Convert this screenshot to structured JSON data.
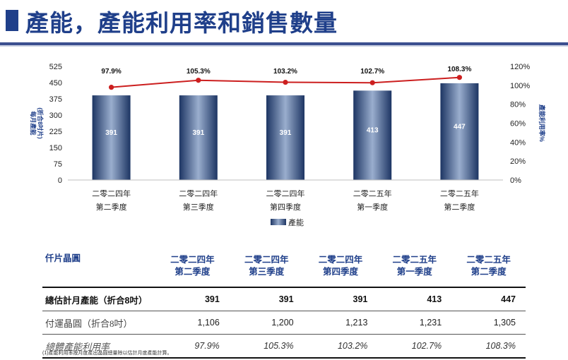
{
  "header": {
    "title": "產能，產能利用率和銷售數量"
  },
  "chart_data": {
    "type": "bar",
    "categories": [
      [
        "二零二四年",
        "第二季度"
      ],
      [
        "二零二四年",
        "第三季度"
      ],
      [
        "二零二四年",
        "第四季度"
      ],
      [
        "二零二五年",
        "第一季度"
      ],
      [
        "二零二五年",
        "第二季度"
      ]
    ],
    "series": [
      {
        "name": "產能",
        "type": "bar",
        "axis": "left",
        "values": [
          391,
          391,
          391,
          413,
          447
        ]
      },
      {
        "type": "line",
        "axis": "right",
        "values": [
          97.9,
          105.3,
          103.2,
          102.7,
          108.3
        ]
      }
    ],
    "bar_labels": [
      "391",
      "391",
      "391",
      "413",
      "447"
    ],
    "line_labels": [
      "97.9%",
      "105.3%",
      "103.2%",
      "102.7%",
      "108.3%"
    ],
    "ylabel_left": [
      "每月產能",
      "(折合8吋片)"
    ],
    "ylabel_right": "產能利用率%",
    "ylim_left": [
      0,
      525
    ],
    "ylim_right": [
      0,
      120
    ],
    "yticks_left": [
      "0",
      "75",
      "150",
      "225",
      "300",
      "375",
      "450",
      "525"
    ],
    "yticks_right": [
      "0%",
      "20%",
      "40%",
      "60%",
      "80%",
      "100%",
      "120%"
    ],
    "legend": {
      "label": "產能",
      "position": "bottom"
    },
    "colors": {
      "bar": "#4a6596",
      "line": "#cc1f1f"
    },
    "grid": false
  },
  "table": {
    "headers": [
      "仟片晶圓",
      [
        "二零二四年",
        "第二季度"
      ],
      [
        "二零二四年",
        "第三季度"
      ],
      [
        "二零二四年",
        "第四季度"
      ],
      [
        "二零二五年",
        "第一季度"
      ],
      [
        "二零二五年",
        "第二季度"
      ]
    ],
    "rows": [
      {
        "label": "總估計月產能（折合8吋）",
        "values": [
          "391",
          "391",
          "391",
          "413",
          "447"
        ]
      },
      {
        "label": "付運晶圓（折合8吋）",
        "values": [
          "1,106",
          "1,200",
          "1,213",
          "1,231",
          "1,305"
        ]
      },
      {
        "label": "總體產能利用率",
        "values": [
          "97.9%",
          "105.3%",
          "103.2%",
          "102.7%",
          "108.3%"
        ]
      }
    ]
  },
  "footnote": "(1)產能利用率按月度產出晶圓總量除以估計月度產能計算。"
}
